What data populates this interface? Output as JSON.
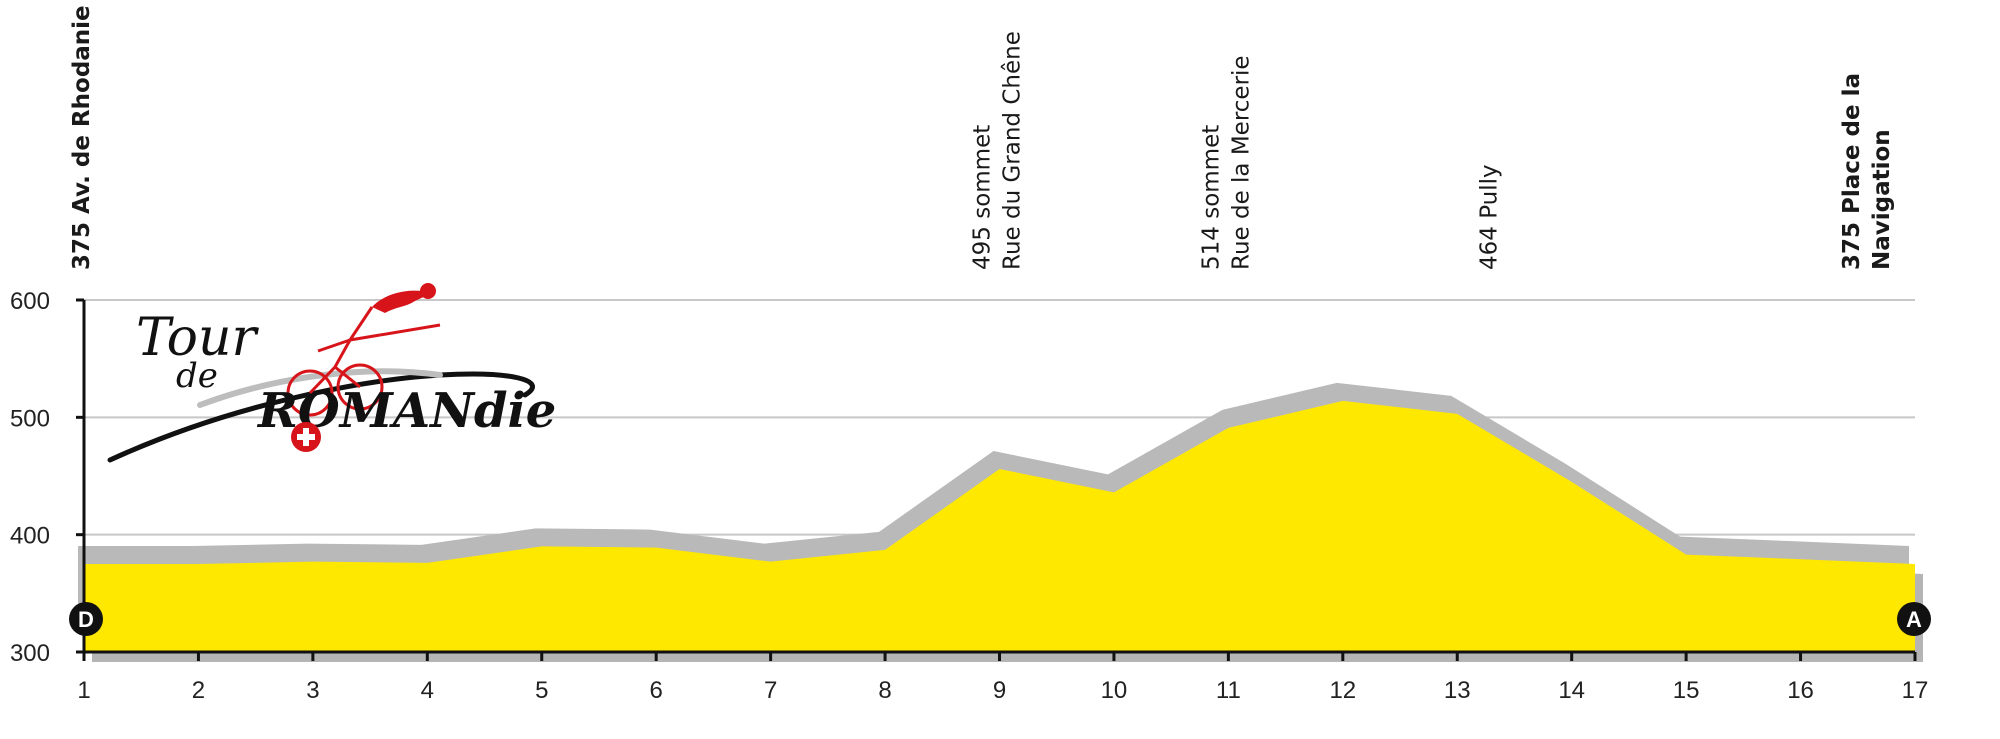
{
  "chart_data": {
    "type": "area",
    "x": [
      1,
      2,
      3,
      4,
      5,
      6,
      7,
      8,
      9,
      10,
      11,
      12,
      13,
      14,
      15,
      16,
      17
    ],
    "values": [
      375,
      375,
      377,
      376,
      390,
      389,
      377,
      387,
      456,
      436,
      491,
      514,
      503,
      445,
      383,
      379,
      375
    ],
    "xlim": [
      1,
      17
    ],
    "ylim": [
      300,
      600
    ],
    "yticks": [
      "300",
      "400",
      "500",
      "600"
    ],
    "xticks": [
      "1",
      "2",
      "3",
      "4",
      "5",
      "6",
      "7",
      "8",
      "9",
      "10",
      "11",
      "12",
      "13",
      "14",
      "15",
      "16",
      "17"
    ],
    "grid": true,
    "fill_color": "#ffe800",
    "shadow_color": "#b9b9b9",
    "annotations": [
      {
        "x": 1,
        "lines": [
          "375 Av. de Rhodanie"
        ],
        "bold": true
      },
      {
        "x": 9,
        "lines": [
          "495 sommet",
          "Rue du Grand Chêne"
        ],
        "bold": false
      },
      {
        "x": 11,
        "lines": [
          "514 sommet",
          "Rue de la Mercerie"
        ],
        "bold": false
      },
      {
        "x": 13.3,
        "lines": [
          "464 Pully"
        ],
        "bold": false
      },
      {
        "x": 16.6,
        "lines": [
          "375  Place de la",
          "Navigation"
        ],
        "bold": true
      }
    ],
    "markers": {
      "start": "D",
      "end": "A"
    }
  },
  "logo": {
    "line1": "Tour",
    "line2": "de",
    "line3": "ROMANdie"
  }
}
